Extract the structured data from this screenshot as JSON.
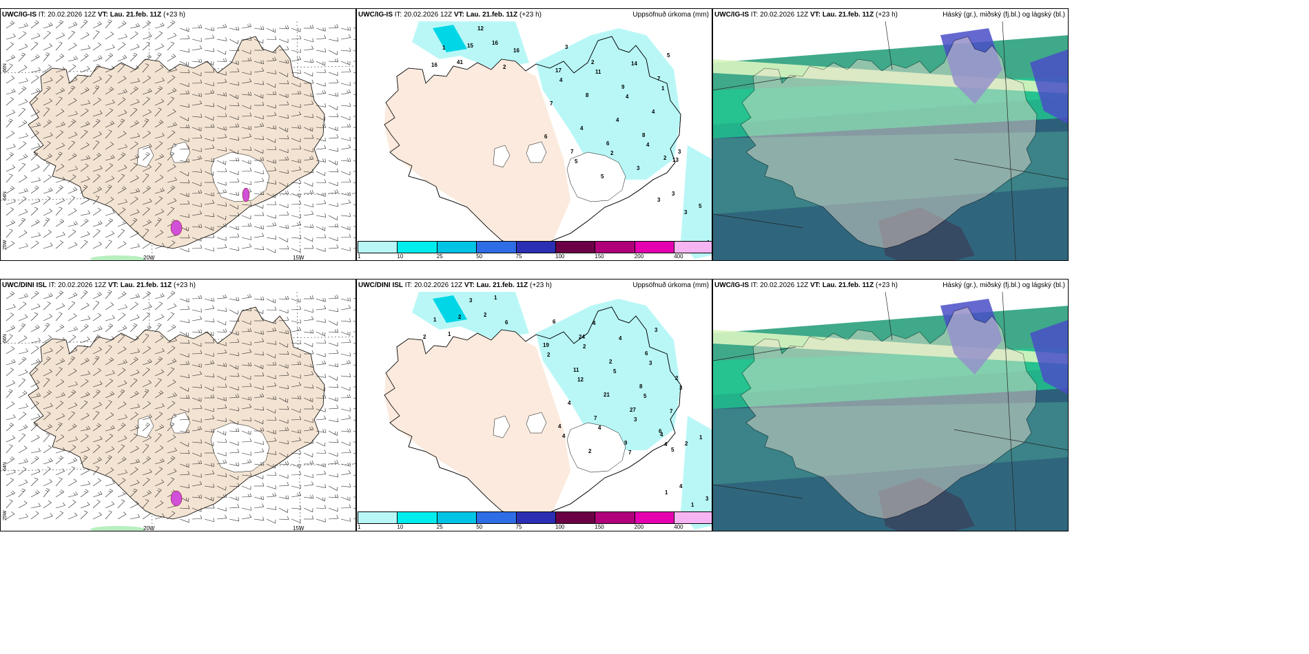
{
  "rows": [
    {
      "model": "UWC/IG-IS",
      "panels": [
        {
          "type": "wind",
          "it": "IT: 20.02.2026 12Z",
          "vt_label": "VT:",
          "vt_value": "Lau. 21.feb. 11Z",
          "lead": "(+23 h)",
          "right_title": ""
        },
        {
          "type": "precip",
          "it": "IT: 20.02.2026 12Z",
          "vt_label": "VT:",
          "vt_value": "Lau. 21.feb. 11Z",
          "lead": "(+23 h)",
          "right_title": "Uppsöfnuð úrkoma (mm)"
        },
        {
          "type": "cloud",
          "it": "IT: 20.02.2026 12Z",
          "vt_label": "VT:",
          "vt_value": "Lau. 21.feb. 11Z",
          "lead": "(+23 h)",
          "right_title": "Háský (gr.), miðský (fj.bl.) og lágský (bl.)"
        }
      ],
      "precip_numbers": [
        "41",
        "16",
        "16",
        "15",
        "2",
        "1",
        "12",
        "16",
        "2",
        "8",
        "17",
        "6",
        "7",
        "7",
        "9",
        "13",
        "8",
        "3",
        "7",
        "5",
        "4",
        "3",
        "4",
        "5",
        "4",
        "14",
        "6",
        "11",
        "4",
        "4",
        "2",
        "1",
        "5",
        "4",
        "1",
        "3",
        "1",
        "3",
        "3",
        "5",
        "2",
        "3"
      ]
    },
    {
      "model": "UWC/DINI ISL",
      "panels": [
        {
          "type": "wind",
          "it": "IT: 20.02.2026 12Z",
          "vt_label": "VT:",
          "vt_value": "Lau. 21.feb. 11Z",
          "lead": "(+23 h)",
          "right_title": ""
        },
        {
          "type": "precip",
          "it": "IT: 20.02.2026 12Z",
          "vt_label": "VT:",
          "vt_value": "Lau. 21.feb. 11Z",
          "lead": "(+23 h)",
          "right_title": "Uppsöfnuð úrkoma (mm)"
        },
        {
          "type": "cloud",
          "it": "IT: 20.02.2026 12Z",
          "vt_label": "VT:",
          "vt_value": "Lau. 21.feb. 11Z",
          "lead": "(+23 h)",
          "right_title": "Háský (gr.), miðský (fj.bl.) og lágský (bl.)",
          "model_label": "UWC/IG-IS"
        }
      ],
      "precip_numbers": [
        "1",
        "2",
        "2",
        "2",
        "1",
        "1",
        "3",
        "6",
        "24",
        "27",
        "19",
        "7",
        "6",
        "4",
        "2",
        "4",
        "11",
        "9",
        "2",
        "2",
        "8",
        "6",
        "21",
        "3",
        "4",
        "4",
        "7",
        "2",
        "3",
        "2",
        "4",
        "3",
        "4",
        "5",
        "4",
        "12",
        "7",
        "3",
        "4",
        "5",
        "6",
        "4",
        "1",
        "1",
        "2",
        "3",
        "5",
        "1"
      ]
    }
  ],
  "map_labels": {
    "lon_20": "20W",
    "lon_15": "15W",
    "lat_66": "66N",
    "lat_64": "64N",
    "lon_25": "25W"
  },
  "colorbar": {
    "ticks": [
      "1",
      "10",
      "25",
      "50",
      "75",
      "100",
      "150",
      "200",
      "400"
    ],
    "colors": [
      "#b9f7f7",
      "#00eded",
      "#00c4e6",
      "#2e6de6",
      "#2b2fb3",
      "#6b0047",
      "#b0007a",
      "#e500b0",
      "#f7b4f2"
    ]
  },
  "colors": {
    "land": "#f3e3d2",
    "land_precip": "#fbeadd",
    "sea": "#ffffff",
    "precip_light": "#b9f7f7",
    "cloud_dark": "#2d5f7a",
    "cloud_green": "#20c890",
    "cloud_pale": "#d9f5c0",
    "cloud_blue": "#4a4fc7"
  }
}
